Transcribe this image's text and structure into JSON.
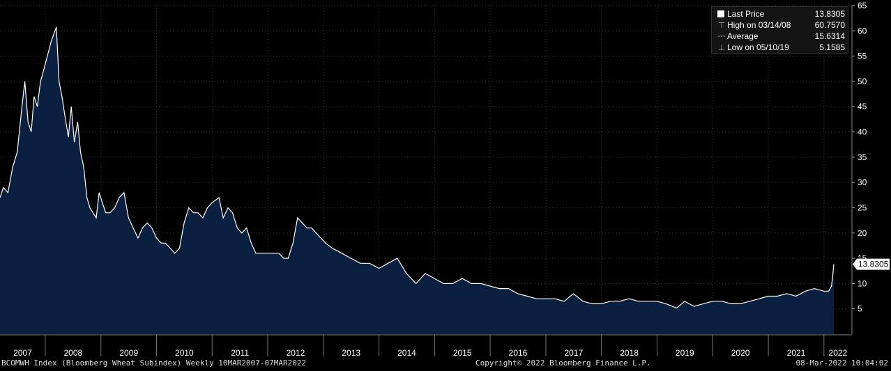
{
  "legend": {
    "last_label": "Last Price",
    "last_value": "13.8305",
    "high_label": "High on 03/14/08",
    "high_value": "60.7570",
    "avg_label": "Average",
    "avg_value": "15.6314",
    "low_label": "Low on 05/10/19",
    "low_value": "5.1585"
  },
  "footer": {
    "left": "BCOMWH Index (Bloomberg Wheat Subindex)  Weekly 10MAR2007-07MAR2022",
    "center": "Copyright© 2022 Bloomberg Finance L.P.",
    "right": "08-Mar-2022 10:04:02"
  },
  "colors": {
    "background": "#000000",
    "area_fill": "#0b2040",
    "line": "#ffffff",
    "grid": "#3a3a3a"
  },
  "chart_data": {
    "type": "area",
    "xlabel": "",
    "ylabel": "",
    "ylim": [
      0,
      65
    ],
    "xlim": [
      "2007-03-10",
      "2022-03-07"
    ],
    "grid": true,
    "legend_position": "top-right",
    "y_ticks": [
      5,
      10,
      15,
      20,
      25,
      30,
      35,
      40,
      45,
      50,
      55,
      60,
      65
    ],
    "x_tick_labels": [
      "2007",
      "2008",
      "2009",
      "2010",
      "2011",
      "2012",
      "2013",
      "2014",
      "2015",
      "2016",
      "2017",
      "2018",
      "2019",
      "2020",
      "2021",
      "2022"
    ],
    "last_value_label": "13.8305",
    "series": [
      {
        "values": [
          [
            "2007-03-10",
            27
          ],
          [
            "2007-04-01",
            29
          ],
          [
            "2007-05-01",
            28
          ],
          [
            "2007-06-01",
            33
          ],
          [
            "2007-07-01",
            36
          ],
          [
            "2007-08-01",
            45
          ],
          [
            "2007-08-20",
            50
          ],
          [
            "2007-09-10",
            42
          ],
          [
            "2007-10-01",
            40
          ],
          [
            "2007-10-20",
            47
          ],
          [
            "2007-11-10",
            45
          ],
          [
            "2007-12-01",
            50
          ],
          [
            "2007-12-20",
            52
          ],
          [
            "2008-01-15",
            55
          ],
          [
            "2008-02-10",
            58
          ],
          [
            "2008-03-14",
            60.757
          ],
          [
            "2008-04-01",
            50
          ],
          [
            "2008-04-20",
            47
          ],
          [
            "2008-05-10",
            43
          ],
          [
            "2008-06-01",
            39
          ],
          [
            "2008-06-20",
            45
          ],
          [
            "2008-07-10",
            38
          ],
          [
            "2008-08-01",
            42
          ],
          [
            "2008-08-20",
            36
          ],
          [
            "2008-09-10",
            33
          ],
          [
            "2008-10-01",
            27
          ],
          [
            "2008-10-20",
            25
          ],
          [
            "2008-11-10",
            24
          ],
          [
            "2008-12-01",
            23
          ],
          [
            "2008-12-20",
            28
          ],
          [
            "2009-01-10",
            26
          ],
          [
            "2009-02-01",
            24
          ],
          [
            "2009-03-01",
            24
          ],
          [
            "2009-04-01",
            25
          ],
          [
            "2009-05-01",
            27
          ],
          [
            "2009-06-01",
            28
          ],
          [
            "2009-07-01",
            23
          ],
          [
            "2009-08-01",
            21
          ],
          [
            "2009-09-01",
            19
          ],
          [
            "2009-10-01",
            21
          ],
          [
            "2009-11-01",
            22
          ],
          [
            "2009-12-01",
            21
          ],
          [
            "2010-01-01",
            19
          ],
          [
            "2010-02-01",
            18
          ],
          [
            "2010-03-01",
            18
          ],
          [
            "2010-04-01",
            17
          ],
          [
            "2010-05-01",
            16
          ],
          [
            "2010-06-01",
            17
          ],
          [
            "2010-07-01",
            22
          ],
          [
            "2010-08-01",
            25
          ],
          [
            "2010-09-01",
            24
          ],
          [
            "2010-10-01",
            24
          ],
          [
            "2010-11-01",
            23
          ],
          [
            "2010-12-01",
            25
          ],
          [
            "2011-01-01",
            26
          ],
          [
            "2011-02-15",
            27
          ],
          [
            "2011-03-15",
            23
          ],
          [
            "2011-04-15",
            25
          ],
          [
            "2011-05-15",
            24
          ],
          [
            "2011-06-15",
            21
          ],
          [
            "2011-07-15",
            20
          ],
          [
            "2011-08-15",
            21
          ],
          [
            "2011-09-15",
            18
          ],
          [
            "2011-10-15",
            16
          ],
          [
            "2011-11-15",
            16
          ],
          [
            "2011-12-15",
            16
          ],
          [
            "2012-01-15",
            16
          ],
          [
            "2012-02-15",
            16
          ],
          [
            "2012-03-15",
            16
          ],
          [
            "2012-04-15",
            15
          ],
          [
            "2012-05-15",
            15
          ],
          [
            "2012-06-15",
            18
          ],
          [
            "2012-07-15",
            23
          ],
          [
            "2012-08-15",
            22
          ],
          [
            "2012-09-15",
            21
          ],
          [
            "2012-10-15",
            21
          ],
          [
            "2012-11-15",
            20
          ],
          [
            "2012-12-15",
            19
          ],
          [
            "2013-01-15",
            18
          ],
          [
            "2013-03-01",
            17
          ],
          [
            "2013-05-01",
            16
          ],
          [
            "2013-07-01",
            15
          ],
          [
            "2013-09-01",
            14
          ],
          [
            "2013-11-01",
            14
          ],
          [
            "2014-01-01",
            13
          ],
          [
            "2014-03-01",
            14
          ],
          [
            "2014-05-01",
            15
          ],
          [
            "2014-07-01",
            12
          ],
          [
            "2014-09-01",
            10
          ],
          [
            "2014-11-01",
            12
          ],
          [
            "2015-01-01",
            11
          ],
          [
            "2015-03-01",
            10
          ],
          [
            "2015-05-01",
            10
          ],
          [
            "2015-07-01",
            11
          ],
          [
            "2015-09-01",
            10
          ],
          [
            "2015-11-01",
            10
          ],
          [
            "2016-01-01",
            9.5
          ],
          [
            "2016-03-01",
            9
          ],
          [
            "2016-05-01",
            9
          ],
          [
            "2016-07-01",
            8
          ],
          [
            "2016-09-01",
            7.5
          ],
          [
            "2016-11-01",
            7
          ],
          [
            "2017-01-01",
            7
          ],
          [
            "2017-03-01",
            7
          ],
          [
            "2017-05-01",
            6.5
          ],
          [
            "2017-07-01",
            8
          ],
          [
            "2017-09-01",
            6.5
          ],
          [
            "2017-11-01",
            6
          ],
          [
            "2018-01-01",
            6
          ],
          [
            "2018-03-01",
            6.5
          ],
          [
            "2018-05-01",
            6.5
          ],
          [
            "2018-07-01",
            7
          ],
          [
            "2018-09-01",
            6.5
          ],
          [
            "2018-11-01",
            6.5
          ],
          [
            "2019-01-01",
            6.5
          ],
          [
            "2019-03-01",
            6
          ],
          [
            "2019-05-10",
            5.1585
          ],
          [
            "2019-07-01",
            6.5
          ],
          [
            "2019-09-01",
            5.5
          ],
          [
            "2019-11-01",
            6
          ],
          [
            "2020-01-01",
            6.5
          ],
          [
            "2020-03-01",
            6.5
          ],
          [
            "2020-05-01",
            6
          ],
          [
            "2020-07-01",
            6
          ],
          [
            "2020-09-01",
            6.5
          ],
          [
            "2020-11-01",
            7
          ],
          [
            "2021-01-01",
            7.5
          ],
          [
            "2021-03-01",
            7.5
          ],
          [
            "2021-05-01",
            8
          ],
          [
            "2021-07-01",
            7.5
          ],
          [
            "2021-09-01",
            8.5
          ],
          [
            "2021-11-01",
            9
          ],
          [
            "2022-01-01",
            8.5
          ],
          [
            "2022-02-01",
            8.5
          ],
          [
            "2022-02-20",
            9.5
          ],
          [
            "2022-03-01",
            12
          ],
          [
            "2022-03-07",
            13.8305
          ]
        ]
      }
    ]
  }
}
